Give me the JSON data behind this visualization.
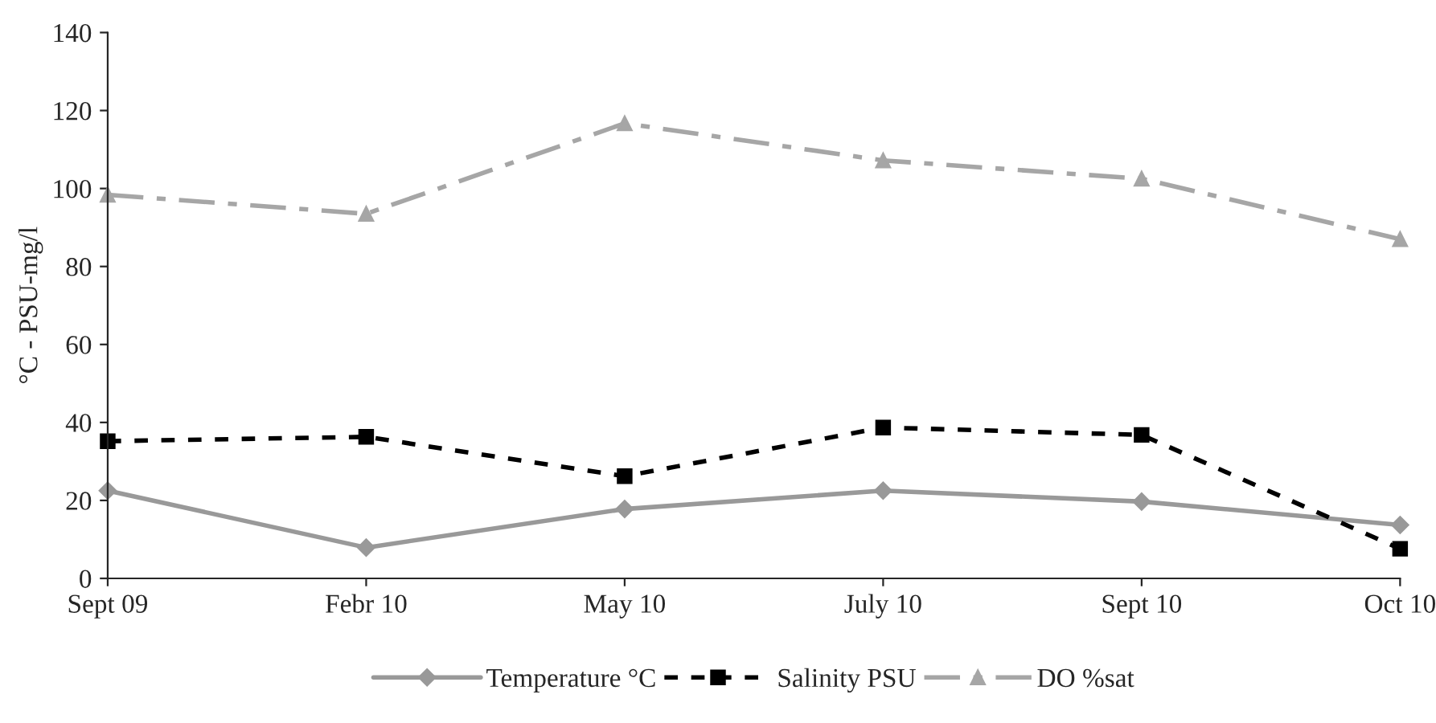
{
  "chart_data": {
    "type": "line",
    "ylabel": "°C - PSU-mg/l",
    "categories": [
      "Sept 09",
      "Febr 10",
      "May 10",
      "July 10",
      "Sept 10",
      "Oct 10"
    ],
    "series": [
      {
        "name": "Temperature °C",
        "color": "#999999",
        "values": [
          22.5,
          7.9,
          17.8,
          22.5,
          19.7,
          13.7
        ],
        "marker": "diamond",
        "line_style": "solid"
      },
      {
        "name": "Salinity PSU",
        "color": "#000000",
        "values": [
          35.2,
          36.3,
          26.2,
          38.7,
          36.8,
          7.6
        ],
        "marker": "square",
        "line_style": "dashed"
      },
      {
        "name": "DO %sat",
        "color": "#a6a6a6",
        "values": [
          98.4,
          93.5,
          116.7,
          107.2,
          102.5,
          87.0
        ],
        "marker": "triangle",
        "line_style": "dashdot"
      }
    ],
    "ylim": [
      0,
      140
    ],
    "yticks": [
      0,
      20,
      40,
      60,
      80,
      100,
      120,
      140
    ],
    "grid": false,
    "legend": "bottom"
  }
}
